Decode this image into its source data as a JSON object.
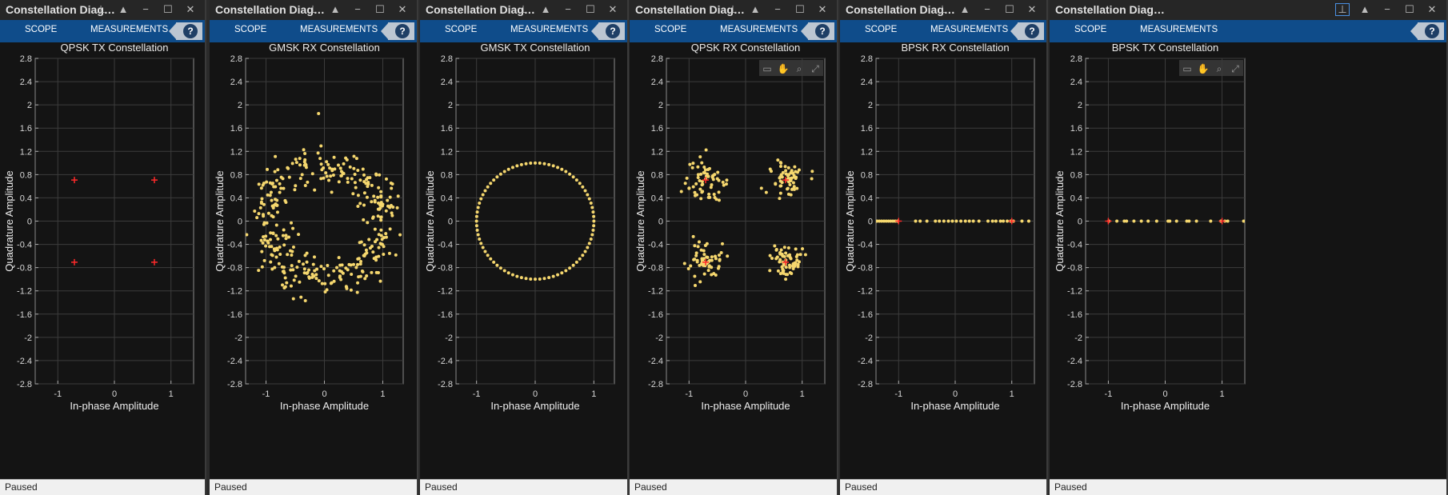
{
  "statusbar_text": "Paused",
  "toolstrip": {
    "scope_label": "SCOPE",
    "measurements_label": "MEASUREMENTS",
    "help_icon": "?"
  },
  "windows": [
    {
      "title": "Constellation Diag…",
      "plot_title": "QPSK TX Constellation",
      "xlabel": "In-phase Amplitude",
      "ylabel": "Quadrature Amplitude",
      "pinned": false
    },
    {
      "title": "Constellation Diag…",
      "plot_title": "GMSK RX Constellation",
      "xlabel": "In-phase Amplitude",
      "ylabel": "Quadrature Amplitude",
      "pinned": false
    },
    {
      "title": "Constellation Diag…",
      "plot_title": "GMSK TX Constellation",
      "xlabel": "In-phase Amplitude",
      "ylabel": "Quadrature Amplitude",
      "pinned": false
    },
    {
      "title": "Constellation Diag…",
      "plot_title": "QPSK RX Constellation",
      "xlabel": "In-phase Amplitude",
      "ylabel": "Quadrature Amplitude",
      "pinned": false
    },
    {
      "title": "Constellation Diag…",
      "plot_title": "BPSK RX Constellation",
      "xlabel": "In-phase Amplitude",
      "ylabel": "Quadrature Amplitude",
      "pinned": false
    },
    {
      "title": "Constellation Diag…",
      "plot_title": "BPSK TX Constellation",
      "xlabel": "In-phase Amplitude",
      "ylabel": "Quadrature Amplitude",
      "pinned": true
    }
  ],
  "colors": {
    "background": "#141414",
    "toolstrip": "#0f4c8a",
    "points": "#f5d76e",
    "reference": "#ff2a2a",
    "grid": "#3c3c3c"
  },
  "chart_data": [
    {
      "type": "scatter",
      "title": "QPSK TX Constellation",
      "xlabel": "In-phase Amplitude",
      "ylabel": "Quadrature Amplitude",
      "xlim": [
        -1.4,
        1.4
      ],
      "ylim": [
        -2.8,
        2.8
      ],
      "xticks": [
        -1,
        0,
        1
      ],
      "yticks": [
        -2.8,
        -2.4,
        -2,
        -1.6,
        -1.2,
        -0.8,
        -0.4,
        0,
        0.4,
        0.8,
        1.2,
        1.6,
        2,
        2.4,
        2.8
      ],
      "grid": true,
      "reference_points": [
        [
          -0.707,
          0.707
        ],
        [
          0.707,
          0.707
        ],
        [
          -0.707,
          -0.707
        ],
        [
          0.707,
          -0.707
        ]
      ],
      "points": []
    },
    {
      "type": "scatter",
      "title": "GMSK RX Constellation",
      "xlabel": "In-phase Amplitude",
      "ylabel": "Quadrature Amplitude",
      "xlim": [
        -1.35,
        1.35
      ],
      "ylim": [
        -2.8,
        2.8
      ],
      "xticks": [
        -1,
        0,
        1
      ],
      "yticks": [
        -2.8,
        -2.4,
        -2,
        -1.6,
        -1.2,
        -0.8,
        -0.4,
        0,
        0.4,
        0.8,
        1.2,
        1.6,
        2,
        2.4,
        2.8
      ],
      "grid": true,
      "reference_points": [],
      "pattern": "noisy_ring",
      "noise": 0.22,
      "count": 360,
      "outlier": [
        -0.1,
        1.85
      ]
    },
    {
      "type": "scatter",
      "title": "GMSK TX Constellation",
      "xlabel": "In-phase Amplitude",
      "ylabel": "Quadrature Amplitude",
      "xlim": [
        -1.35,
        1.35
      ],
      "ylim": [
        -2.8,
        2.8
      ],
      "xticks": [
        -1,
        0,
        1
      ],
      "yticks": [
        -2.8,
        -2.4,
        -2,
        -1.6,
        -1.2,
        -0.8,
        -0.4,
        0,
        0.4,
        0.8,
        1.2,
        1.6,
        2,
        2.4,
        2.8
      ],
      "grid": true,
      "reference_points": [],
      "pattern": "ring",
      "count": 80
    },
    {
      "type": "scatter",
      "title": "QPSK RX Constellation",
      "xlabel": "In-phase Amplitude",
      "ylabel": "Quadrature Amplitude",
      "xlim": [
        -1.4,
        1.4
      ],
      "ylim": [
        -2.8,
        2.8
      ],
      "xticks": [
        -1,
        0,
        1
      ],
      "yticks": [
        -2.8,
        -2.4,
        -2,
        -1.6,
        -1.2,
        -0.8,
        -0.4,
        0,
        0.4,
        0.8,
        1.2,
        1.6,
        2,
        2.4,
        2.8
      ],
      "grid": true,
      "reference_points": [
        [
          -0.707,
          0.707
        ],
        [
          0.707,
          0.707
        ],
        [
          -0.707,
          -0.707
        ],
        [
          0.707,
          -0.707
        ]
      ],
      "pattern": "clusters",
      "noise": 0.16,
      "count": 240,
      "plot_toolbar": true
    },
    {
      "type": "scatter",
      "title": "BPSK RX Constellation",
      "xlabel": "In-phase Amplitude",
      "ylabel": "Quadrature Amplitude",
      "xlim": [
        -1.4,
        1.4
      ],
      "ylim": [
        -2.8,
        2.8
      ],
      "xticks": [
        -1,
        0,
        1
      ],
      "yticks": [
        -2.8,
        -2.4,
        -2,
        -1.6,
        -1.2,
        -0.8,
        -0.4,
        0,
        0.4,
        0.8,
        1.2,
        1.6,
        2,
        2.4,
        2.8
      ],
      "grid": true,
      "reference_points": [
        [
          -1,
          0
        ],
        [
          1,
          0
        ]
      ],
      "points": [
        [
          -1.38,
          0
        ],
        [
          -1.34,
          0
        ],
        [
          -1.3,
          0
        ],
        [
          -1.26,
          0
        ],
        [
          -1.22,
          0
        ],
        [
          -1.18,
          0
        ],
        [
          -1.14,
          0
        ],
        [
          -1.1,
          0
        ],
        [
          -1.06,
          0
        ],
        [
          -1.02,
          0
        ],
        [
          -0.7,
          0
        ],
        [
          -0.62,
          0
        ],
        [
          -0.5,
          0
        ],
        [
          -0.35,
          0
        ],
        [
          -0.28,
          0
        ],
        [
          -0.2,
          0
        ],
        [
          -0.12,
          0
        ],
        [
          -0.05,
          0
        ],
        [
          0.02,
          0
        ],
        [
          0.1,
          0
        ],
        [
          0.18,
          0
        ],
        [
          0.25,
          0
        ],
        [
          0.32,
          0
        ],
        [
          0.42,
          0
        ],
        [
          0.58,
          0
        ],
        [
          0.66,
          0
        ],
        [
          0.72,
          0
        ],
        [
          0.8,
          0
        ],
        [
          0.85,
          0
        ],
        [
          0.92,
          0
        ],
        [
          0.98,
          0
        ],
        [
          1.03,
          0
        ],
        [
          1.18,
          0
        ],
        [
          1.3,
          0
        ]
      ]
    },
    {
      "type": "scatter",
      "title": "BPSK TX Constellation",
      "xlabel": "In-phase Amplitude",
      "ylabel": "Quadrature Amplitude",
      "xlim": [
        -1.4,
        1.4
      ],
      "ylim": [
        -2.8,
        2.8
      ],
      "xticks": [
        -1,
        0,
        1
      ],
      "yticks": [
        -2.8,
        -2.4,
        -2,
        -1.6,
        -1.2,
        -0.8,
        -0.4,
        0,
        0.4,
        0.8,
        1.2,
        1.6,
        2,
        2.4,
        2.8
      ],
      "grid": true,
      "reference_points": [
        [
          -1,
          0
        ],
        [
          1,
          0
        ]
      ],
      "points": [
        [
          -0.99,
          0
        ],
        [
          -0.85,
          0
        ],
        [
          -0.72,
          0
        ],
        [
          -0.68,
          0
        ],
        [
          -0.55,
          0
        ],
        [
          -0.42,
          0
        ],
        [
          -0.3,
          0
        ],
        [
          -0.15,
          0
        ],
        [
          0.05,
          0
        ],
        [
          0.08,
          0
        ],
        [
          0.2,
          0
        ],
        [
          0.38,
          0
        ],
        [
          0.42,
          0
        ],
        [
          0.55,
          0
        ],
        [
          0.8,
          0
        ],
        [
          0.98,
          0
        ],
        [
          1.05,
          0
        ],
        [
          1.1,
          0
        ],
        [
          1.38,
          0
        ]
      ]
    }
  ]
}
